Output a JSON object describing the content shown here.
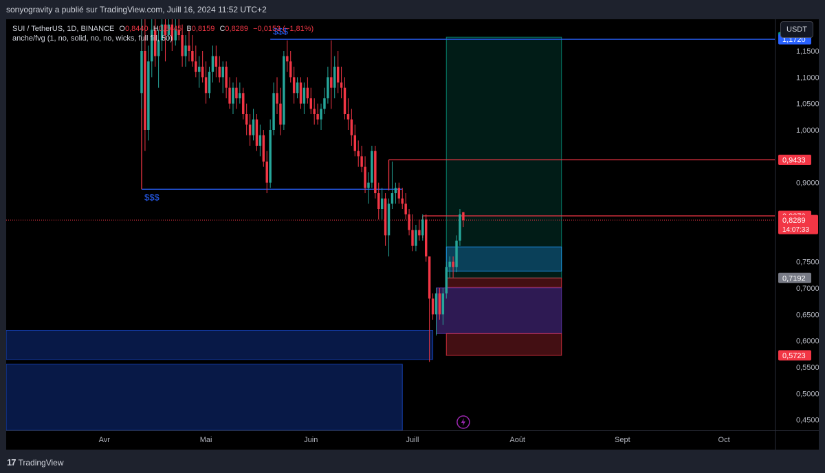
{
  "header": {
    "published_by": "sonyogravity a publié sur TradingView.com, Juill 16, 2024 11:52 UTC+2"
  },
  "legend": {
    "symbol": "SUI / TetherUS, 1D, BINANCE",
    "o_label": "O",
    "o_value": "0,8440",
    "h_label": "H",
    "h_value": "0,8445",
    "l_label": "B",
    "l_value": "0,8159",
    "c_label": "C",
    "c_value": "0,8289",
    "change": "−0,0153 (−1,81%)",
    "indicator": "anche/fvg (1, no, solid, no, no, wicks, full fill, 50)"
  },
  "currency_button": "USDT",
  "footer": {
    "logo_mark": "17",
    "logo_text": "TradingView"
  },
  "colors": {
    "up": "#26a69a",
    "down": "#f23645",
    "liquidity_line": "#2962ff",
    "resistance_line": "#f23645",
    "background": "#000000"
  },
  "chart_data": {
    "type": "candlestick",
    "symbol": "SUI / TetherUS",
    "interval": "1D",
    "ylim": [
      0.43,
      1.21
    ],
    "y_ticks": [
      {
        "v": 1.15,
        "label": "1,1500"
      },
      {
        "v": 1.1,
        "label": "1,1000"
      },
      {
        "v": 1.05,
        "label": "1,0500"
      },
      {
        "v": 1.0,
        "label": "1,0000"
      },
      {
        "v": 0.9,
        "label": "0,9000"
      },
      {
        "v": 0.75,
        "label": "0,7500"
      },
      {
        "v": 0.7,
        "label": "0,7000"
      },
      {
        "v": 0.65,
        "label": "0,6500"
      },
      {
        "v": 0.6,
        "label": "0,6000"
      },
      {
        "v": 0.55,
        "label": "0,5500"
      },
      {
        "v": 0.5,
        "label": "0,5000"
      },
      {
        "v": 0.45,
        "label": "0,4500"
      }
    ],
    "x_ticks": [
      {
        "date": "2024-04-01",
        "label": "Avr"
      },
      {
        "date": "2024-05-01",
        "label": "Mai"
      },
      {
        "date": "2024-06-01",
        "label": "Juin"
      },
      {
        "date": "2024-07-01",
        "label": "Juill"
      },
      {
        "date": "2024-08-01",
        "label": "Août"
      },
      {
        "date": "2024-09-01",
        "label": "Sept"
      },
      {
        "date": "2024-10-01",
        "label": "Oct"
      }
    ],
    "xlim": [
      "2024-03-03",
      "2024-10-16"
    ],
    "price_tags": [
      {
        "value": 1.1759,
        "label": "1,1759",
        "color": "#089981"
      },
      {
        "value": 1.172,
        "label": "1,1720",
        "color": "#2962ff"
      },
      {
        "value": 0.9433,
        "label": "0,9433",
        "color": "#f23645"
      },
      {
        "value": 0.837,
        "label": "0,8370",
        "color": "#f23645"
      },
      {
        "value": 0.8289,
        "label": "0,8289",
        "sublabel": "14:07:33",
        "color": "#f23645"
      },
      {
        "value": 0.7192,
        "label": "0,7192",
        "color": "#787b86"
      },
      {
        "value": 0.5723,
        "label": "0,5723",
        "color": "#f23645"
      }
    ],
    "annotations": [
      {
        "type": "hline",
        "value": 1.172,
        "from": "2024-05-20",
        "to": "2024-10-16",
        "color": "#2962ff",
        "text": "$$$",
        "text_pos": "above-left"
      },
      {
        "type": "hline",
        "value": 0.8875,
        "from": "2024-04-12",
        "to": "2024-06-28",
        "color": "#2962ff",
        "text": "$$$",
        "text_pos": "below-left"
      },
      {
        "type": "vline",
        "date": "2024-04-12",
        "from_value": 1.21,
        "to_value": 0.8875,
        "color": "#f23645"
      },
      {
        "type": "hline",
        "value": 0.9433,
        "from": "2024-06-24",
        "to": "2024-10-16",
        "color": "#f23645",
        "stem_to": 0.885
      },
      {
        "type": "hline",
        "value": 0.837,
        "from": "2024-07-04",
        "to": "2024-10-16",
        "color": "#f23645",
        "stem_to": 0.795
      }
    ],
    "zones": [
      {
        "name": "long-target-zone",
        "from": "2024-07-11",
        "to": "2024-08-14",
        "top": 1.1759,
        "bottom": 0.7192,
        "color": "#089981",
        "opacity": 0.18
      },
      {
        "name": "fvg-blue-upper",
        "from": "2024-07-11",
        "to": "2024-08-14",
        "top": 0.7781,
        "bottom": 0.7322,
        "color": "#2196f3",
        "opacity": 0.3
      },
      {
        "name": "stop-zone-upper",
        "from": "2024-07-11",
        "to": "2024-08-14",
        "top": 0.7192,
        "bottom": 0.7012,
        "color": "#f23645",
        "opacity": 0.28
      },
      {
        "name": "fvg-purple",
        "from": "2024-07-08",
        "to": "2024-08-14",
        "top": 0.7003,
        "bottom": 0.6136,
        "color": "#673ab7",
        "opacity": 0.45
      },
      {
        "name": "stop-zone-lower",
        "from": "2024-07-11",
        "to": "2024-08-14",
        "top": 0.6136,
        "bottom": 0.5723,
        "color": "#f23645",
        "opacity": 0.28
      },
      {
        "name": "demand-zone-upper",
        "from": "2024-03-03",
        "to": "2024-07-07",
        "top": 0.6198,
        "bottom": 0.5645,
        "color": "#1848cc",
        "opacity": 0.35
      },
      {
        "name": "demand-zone-lower",
        "from": "2024-03-03",
        "to": "2024-06-28",
        "top": 0.5556,
        "bottom": 0.43,
        "color": "#1848cc",
        "opacity": 0.35
      }
    ],
    "current_price": 0.8289,
    "candles": [
      {
        "d": "2024-04-12",
        "o": 1.07,
        "h": 1.21,
        "l": 1.04,
        "c": 1.15
      },
      {
        "d": "2024-04-13",
        "o": 1.15,
        "h": 1.21,
        "l": 0.96,
        "c": 1.0
      },
      {
        "d": "2024-04-14",
        "o": 1.0,
        "h": 1.16,
        "l": 0.98,
        "c": 1.13
      },
      {
        "d": "2024-04-15",
        "o": 1.13,
        "h": 1.21,
        "l": 1.1,
        "c": 1.19
      },
      {
        "d": "2024-04-16",
        "o": 1.19,
        "h": 1.21,
        "l": 1.12,
        "c": 1.14
      },
      {
        "d": "2024-04-17",
        "o": 1.14,
        "h": 1.19,
        "l": 1.08,
        "c": 1.17
      },
      {
        "d": "2024-04-18",
        "o": 1.17,
        "h": 1.21,
        "l": 1.15,
        "c": 1.2
      },
      {
        "d": "2024-04-19",
        "o": 1.2,
        "h": 1.21,
        "l": 1.13,
        "c": 1.18
      },
      {
        "d": "2024-04-20",
        "o": 1.18,
        "h": 1.21,
        "l": 1.17,
        "c": 1.2
      },
      {
        "d": "2024-04-21",
        "o": 1.2,
        "h": 1.21,
        "l": 1.15,
        "c": 1.17
      },
      {
        "d": "2024-04-22",
        "o": 1.17,
        "h": 1.21,
        "l": 1.16,
        "c": 1.19
      },
      {
        "d": "2024-04-23",
        "o": 1.19,
        "h": 1.21,
        "l": 1.17,
        "c": 1.18
      },
      {
        "d": "2024-04-24",
        "o": 1.18,
        "h": 1.2,
        "l": 1.12,
        "c": 1.14
      },
      {
        "d": "2024-04-25",
        "o": 1.14,
        "h": 1.18,
        "l": 1.12,
        "c": 1.16
      },
      {
        "d": "2024-04-26",
        "o": 1.16,
        "h": 1.19,
        "l": 1.13,
        "c": 1.15
      },
      {
        "d": "2024-04-27",
        "o": 1.15,
        "h": 1.18,
        "l": 1.12,
        "c": 1.13
      },
      {
        "d": "2024-04-28",
        "o": 1.13,
        "h": 1.16,
        "l": 1.1,
        "c": 1.11
      },
      {
        "d": "2024-04-29",
        "o": 1.11,
        "h": 1.14,
        "l": 1.08,
        "c": 1.12
      },
      {
        "d": "2024-04-30",
        "o": 1.12,
        "h": 1.15,
        "l": 1.09,
        "c": 1.1
      },
      {
        "d": "2024-05-01",
        "o": 1.1,
        "h": 1.13,
        "l": 1.05,
        "c": 1.07
      },
      {
        "d": "2024-05-02",
        "o": 1.07,
        "h": 1.12,
        "l": 1.06,
        "c": 1.11
      },
      {
        "d": "2024-05-03",
        "o": 1.11,
        "h": 1.16,
        "l": 1.09,
        "c": 1.14
      },
      {
        "d": "2024-05-04",
        "o": 1.14,
        "h": 1.16,
        "l": 1.1,
        "c": 1.12
      },
      {
        "d": "2024-05-05",
        "o": 1.12,
        "h": 1.14,
        "l": 1.09,
        "c": 1.1
      },
      {
        "d": "2024-05-06",
        "o": 1.1,
        "h": 1.13,
        "l": 1.07,
        "c": 1.12
      },
      {
        "d": "2024-05-07",
        "o": 1.12,
        "h": 1.13,
        "l": 1.06,
        "c": 1.08
      },
      {
        "d": "2024-05-08",
        "o": 1.08,
        "h": 1.1,
        "l": 1.04,
        "c": 1.05
      },
      {
        "d": "2024-05-09",
        "o": 1.05,
        "h": 1.09,
        "l": 1.03,
        "c": 1.08
      },
      {
        "d": "2024-05-10",
        "o": 1.08,
        "h": 1.1,
        "l": 1.04,
        "c": 1.06
      },
      {
        "d": "2024-05-11",
        "o": 1.06,
        "h": 1.09,
        "l": 1.05,
        "c": 1.07
      },
      {
        "d": "2024-05-12",
        "o": 1.07,
        "h": 1.08,
        "l": 1.02,
        "c": 1.03
      },
      {
        "d": "2024-05-13",
        "o": 1.03,
        "h": 1.05,
        "l": 0.99,
        "c": 1.01
      },
      {
        "d": "2024-05-14",
        "o": 1.01,
        "h": 1.03,
        "l": 0.97,
        "c": 0.99
      },
      {
        "d": "2024-05-15",
        "o": 0.99,
        "h": 1.04,
        "l": 0.98,
        "c": 1.02
      },
      {
        "d": "2024-05-16",
        "o": 1.02,
        "h": 1.03,
        "l": 0.96,
        "c": 0.97
      },
      {
        "d": "2024-05-17",
        "o": 0.97,
        "h": 1.01,
        "l": 0.95,
        "c": 0.99
      },
      {
        "d": "2024-05-18",
        "o": 0.99,
        "h": 1.0,
        "l": 0.93,
        "c": 0.94
      },
      {
        "d": "2024-05-19",
        "o": 0.94,
        "h": 0.96,
        "l": 0.88,
        "c": 0.9
      },
      {
        "d": "2024-05-20",
        "o": 0.9,
        "h": 1.02,
        "l": 0.89,
        "c": 1.0
      },
      {
        "d": "2024-05-21",
        "o": 1.0,
        "h": 1.09,
        "l": 0.99,
        "c": 1.07
      },
      {
        "d": "2024-05-22",
        "o": 1.07,
        "h": 1.1,
        "l": 1.03,
        "c": 1.05
      },
      {
        "d": "2024-05-23",
        "o": 1.05,
        "h": 1.08,
        "l": 0.99,
        "c": 1.01
      },
      {
        "d": "2024-05-24",
        "o": 1.01,
        "h": 1.15,
        "l": 1.0,
        "c": 1.14
      },
      {
        "d": "2024-05-25",
        "o": 1.14,
        "h": 1.17,
        "l": 1.11,
        "c": 1.13
      },
      {
        "d": "2024-05-26",
        "o": 1.13,
        "h": 1.15,
        "l": 1.09,
        "c": 1.1
      },
      {
        "d": "2024-05-27",
        "o": 1.1,
        "h": 1.12,
        "l": 1.05,
        "c": 1.07
      },
      {
        "d": "2024-05-28",
        "o": 1.07,
        "h": 1.1,
        "l": 1.06,
        "c": 1.09
      },
      {
        "d": "2024-05-29",
        "o": 1.09,
        "h": 1.1,
        "l": 1.04,
        "c": 1.05
      },
      {
        "d": "2024-05-30",
        "o": 1.05,
        "h": 1.09,
        "l": 1.03,
        "c": 1.08
      },
      {
        "d": "2024-05-31",
        "o": 1.08,
        "h": 1.1,
        "l": 1.05,
        "c": 1.06
      },
      {
        "d": "2024-06-01",
        "o": 1.06,
        "h": 1.08,
        "l": 1.03,
        "c": 1.04
      },
      {
        "d": "2024-06-02",
        "o": 1.04,
        "h": 1.06,
        "l": 1.01,
        "c": 1.03
      },
      {
        "d": "2024-06-03",
        "o": 1.03,
        "h": 1.05,
        "l": 1.01,
        "c": 1.02
      },
      {
        "d": "2024-06-04",
        "o": 1.02,
        "h": 1.05,
        "l": 1.0,
        "c": 1.04
      },
      {
        "d": "2024-06-05",
        "o": 1.04,
        "h": 1.08,
        "l": 1.03,
        "c": 1.06
      },
      {
        "d": "2024-06-06",
        "o": 1.06,
        "h": 1.12,
        "l": 1.05,
        "c": 1.1
      },
      {
        "d": "2024-06-07",
        "o": 1.1,
        "h": 1.17,
        "l": 1.04,
        "c": 1.08
      },
      {
        "d": "2024-06-08",
        "o": 1.08,
        "h": 1.14,
        "l": 1.06,
        "c": 1.12
      },
      {
        "d": "2024-06-09",
        "o": 1.12,
        "h": 1.15,
        "l": 1.07,
        "c": 1.09
      },
      {
        "d": "2024-06-10",
        "o": 1.09,
        "h": 1.12,
        "l": 1.06,
        "c": 1.08
      },
      {
        "d": "2024-06-11",
        "o": 1.08,
        "h": 1.1,
        "l": 1.02,
        "c": 1.03
      },
      {
        "d": "2024-06-12",
        "o": 1.03,
        "h": 1.06,
        "l": 1.0,
        "c": 1.02
      },
      {
        "d": "2024-06-13",
        "o": 1.02,
        "h": 1.04,
        "l": 0.97,
        "c": 0.99
      },
      {
        "d": "2024-06-14",
        "o": 0.99,
        "h": 1.01,
        "l": 0.95,
        "c": 0.96
      },
      {
        "d": "2024-06-15",
        "o": 0.96,
        "h": 0.98,
        "l": 0.93,
        "c": 0.95
      },
      {
        "d": "2024-06-16",
        "o": 0.95,
        "h": 0.97,
        "l": 0.92,
        "c": 0.93
      },
      {
        "d": "2024-06-17",
        "o": 0.93,
        "h": 0.95,
        "l": 0.88,
        "c": 0.89
      },
      {
        "d": "2024-06-18",
        "o": 0.89,
        "h": 0.92,
        "l": 0.86,
        "c": 0.9
      },
      {
        "d": "2024-06-19",
        "o": 0.9,
        "h": 0.97,
        "l": 0.89,
        "c": 0.96
      },
      {
        "d": "2024-06-20",
        "o": 0.96,
        "h": 0.97,
        "l": 0.87,
        "c": 0.88
      },
      {
        "d": "2024-06-21",
        "o": 0.88,
        "h": 0.9,
        "l": 0.83,
        "c": 0.85
      },
      {
        "d": "2024-06-22",
        "o": 0.85,
        "h": 0.89,
        "l": 0.83,
        "c": 0.87
      },
      {
        "d": "2024-06-23",
        "o": 0.87,
        "h": 0.88,
        "l": 0.78,
        "c": 0.8
      },
      {
        "d": "2024-06-24",
        "o": 0.8,
        "h": 0.87,
        "l": 0.76,
        "c": 0.86
      },
      {
        "d": "2024-06-25",
        "o": 0.86,
        "h": 0.94,
        "l": 0.85,
        "c": 0.88
      },
      {
        "d": "2024-06-26",
        "o": 0.88,
        "h": 0.9,
        "l": 0.86,
        "c": 0.89
      },
      {
        "d": "2024-06-27",
        "o": 0.89,
        "h": 0.9,
        "l": 0.86,
        "c": 0.87
      },
      {
        "d": "2024-06-28",
        "o": 0.87,
        "h": 0.89,
        "l": 0.85,
        "c": 0.86
      },
      {
        "d": "2024-06-29",
        "o": 0.86,
        "h": 0.88,
        "l": 0.83,
        "c": 0.84
      },
      {
        "d": "2024-06-30",
        "o": 0.84,
        "h": 0.85,
        "l": 0.8,
        "c": 0.81
      },
      {
        "d": "2024-07-01",
        "o": 0.81,
        "h": 0.84,
        "l": 0.77,
        "c": 0.78
      },
      {
        "d": "2024-07-02",
        "o": 0.78,
        "h": 0.82,
        "l": 0.77,
        "c": 0.81
      },
      {
        "d": "2024-07-03",
        "o": 0.81,
        "h": 0.83,
        "l": 0.79,
        "c": 0.8
      },
      {
        "d": "2024-07-04",
        "o": 0.8,
        "h": 0.84,
        "l": 0.79,
        "c": 0.83
      },
      {
        "d": "2024-07-05",
        "o": 0.83,
        "h": 0.84,
        "l": 0.75,
        "c": 0.76
      },
      {
        "d": "2024-07-06",
        "o": 0.76,
        "h": 0.76,
        "l": 0.56,
        "c": 0.68
      },
      {
        "d": "2024-07-07",
        "o": 0.68,
        "h": 0.69,
        "l": 0.64,
        "c": 0.65
      },
      {
        "d": "2024-07-08",
        "o": 0.65,
        "h": 0.7,
        "l": 0.61,
        "c": 0.69
      },
      {
        "d": "2024-07-09",
        "o": 0.69,
        "h": 0.7,
        "l": 0.64,
        "c": 0.65
      },
      {
        "d": "2024-07-10",
        "o": 0.65,
        "h": 0.7,
        "l": 0.63,
        "c": 0.69
      },
      {
        "d": "2024-07-11",
        "o": 0.69,
        "h": 0.75,
        "l": 0.68,
        "c": 0.74
      },
      {
        "d": "2024-07-12",
        "o": 0.74,
        "h": 0.76,
        "l": 0.72,
        "c": 0.75
      },
      {
        "d": "2024-07-13",
        "o": 0.75,
        "h": 0.76,
        "l": 0.72,
        "c": 0.74
      },
      {
        "d": "2024-07-14",
        "o": 0.74,
        "h": 0.8,
        "l": 0.73,
        "c": 0.79
      },
      {
        "d": "2024-07-15",
        "o": 0.79,
        "h": 0.85,
        "l": 0.78,
        "c": 0.84
      },
      {
        "d": "2024-07-16",
        "o": 0.844,
        "h": 0.8445,
        "l": 0.8159,
        "c": 0.8289
      }
    ]
  }
}
